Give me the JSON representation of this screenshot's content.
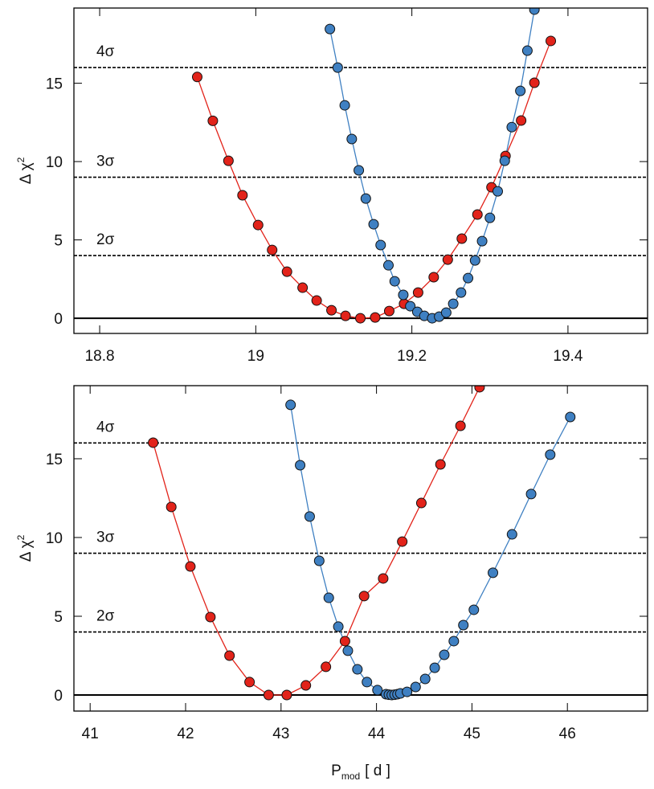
{
  "chart_data": [
    {
      "type": "scatter-line",
      "ylabel": [
        "Δ χ",
        "2"
      ],
      "xlim": [
        18.767,
        19.502
      ],
      "ylim": [
        -0.97,
        19.8
      ],
      "xticks": [
        18.8,
        19,
        19.2,
        19.4
      ],
      "yticks": [
        0,
        5,
        10,
        15
      ],
      "reference_lines": [
        {
          "y": 16,
          "label": "4σ",
          "dashed": true
        },
        {
          "y": 9,
          "label": "3σ",
          "dashed": true
        },
        {
          "y": 4,
          "label": "2σ",
          "dashed": true
        },
        {
          "y": 0,
          "dashed": false
        }
      ],
      "series": [
        {
          "color": "#e2231a",
          "x": [
            18.925,
            18.945,
            18.965,
            18.983,
            19.003,
            19.021,
            19.04,
            19.06,
            19.078,
            19.097,
            19.115,
            19.134,
            19.153,
            19.171,
            19.19,
            19.208,
            19.228,
            19.246,
            19.264,
            19.284,
            19.302,
            19.32,
            19.34,
            19.357,
            19.378
          ],
          "values": [
            15.4,
            12.6,
            10.05,
            7.85,
            5.95,
            4.36,
            2.97,
            1.95,
            1.13,
            0.51,
            0.15,
            0,
            0.05,
            0.46,
            0.92,
            1.64,
            2.62,
            3.74,
            5.08,
            6.62,
            8.36,
            10.36,
            12.62,
            15.03,
            17.7
          ]
        },
        {
          "color": "#3f80c2",
          "x": [
            19.095,
            19.105,
            19.114,
            19.123,
            19.132,
            19.141,
            19.151,
            19.16,
            19.17,
            19.178,
            19.189,
            19.198,
            19.207,
            19.216,
            19.226,
            19.235,
            19.244,
            19.253,
            19.263,
            19.272,
            19.281,
            19.29,
            19.3,
            19.31,
            19.319,
            19.328,
            19.339,
            19.348,
            19.357
          ],
          "values": [
            18.46,
            16.0,
            13.59,
            11.44,
            9.44,
            7.64,
            6.0,
            4.67,
            3.38,
            2.36,
            1.49,
            0.77,
            0.41,
            0.15,
            0,
            0.1,
            0.36,
            0.92,
            1.64,
            2.56,
            3.69,
            4.92,
            6.41,
            8.1,
            10.05,
            12.2,
            14.51,
            17.08,
            19.7
          ]
        }
      ]
    },
    {
      "type": "scatter-line",
      "ylabel": [
        "Δ χ",
        "2"
      ],
      "xlabel": [
        "P",
        "mod",
        "[ d ]"
      ],
      "xlim": [
        40.83,
        46.84
      ],
      "ylim": [
        -1.02,
        19.64
      ],
      "xticks": [
        41,
        42,
        43,
        44,
        45,
        46
      ],
      "yticks": [
        0,
        5,
        10,
        15
      ],
      "reference_lines": [
        {
          "y": 16,
          "label": "4σ",
          "dashed": true
        },
        {
          "y": 9,
          "label": "3σ",
          "dashed": true
        },
        {
          "y": 4,
          "label": "2σ",
          "dashed": true
        },
        {
          "y": 0,
          "dashed": false
        }
      ],
      "series": [
        {
          "color": "#e2231a",
          "x": [
            41.66,
            41.85,
            42.05,
            42.26,
            42.46,
            42.67,
            42.87,
            43.06,
            43.26,
            43.47,
            43.67,
            43.87,
            44.07,
            44.27,
            44.47,
            44.67,
            44.88,
            45.08
          ],
          "values": [
            16.02,
            11.94,
            8.16,
            4.95,
            2.5,
            0.82,
            0,
            0,
            0.61,
            1.79,
            3.42,
            6.28,
            7.4,
            9.74,
            12.19,
            14.64,
            17.09,
            19.54
          ]
        },
        {
          "color": "#3f80c2",
          "x": [
            43.1,
            43.2,
            43.3,
            43.4,
            43.5,
            43.6,
            43.7,
            43.8,
            43.9,
            44.01,
            44.1,
            44.13,
            44.16,
            44.19,
            44.22,
            44.25,
            44.32,
            44.41,
            44.51,
            44.61,
            44.71,
            44.81,
            44.91,
            45.02,
            45.22,
            45.42,
            45.62,
            45.82,
            46.03
          ],
          "values": [
            18.42,
            14.59,
            11.33,
            8.52,
            6.17,
            4.34,
            2.81,
            1.63,
            0.82,
            0.31,
            0.05,
            0.02,
            0,
            0.02,
            0.05,
            0.1,
            0.2,
            0.51,
            1.02,
            1.73,
            2.55,
            3.42,
            4.44,
            5.41,
            7.76,
            10.2,
            12.76,
            15.26,
            17.65
          ]
        }
      ]
    }
  ]
}
